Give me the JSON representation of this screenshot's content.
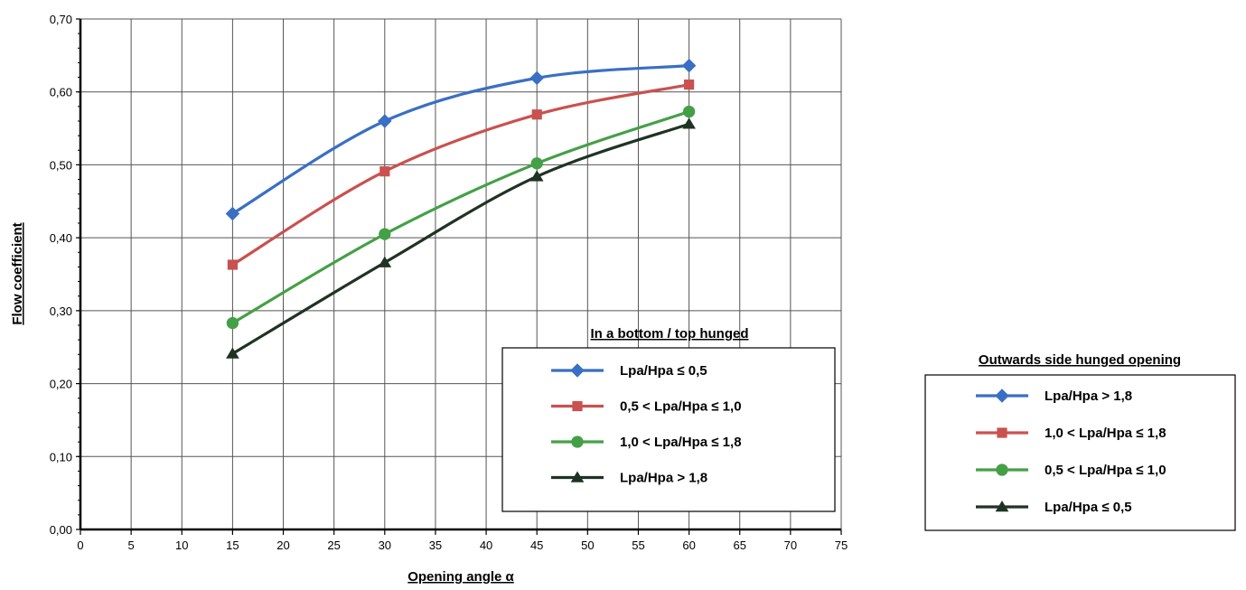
{
  "chart_data": {
    "type": "line",
    "xlabel": "Opening angle α",
    "ylabel": "Flow coefficient",
    "xlim": [
      0,
      75
    ],
    "ylim": [
      0,
      0.7
    ],
    "x_ticks": [
      "0",
      "5",
      "10",
      "15",
      "20",
      "25",
      "30",
      "35",
      "40",
      "45",
      "50",
      "55",
      "60",
      "65",
      "70",
      "75"
    ],
    "y_ticks": [
      "0,00",
      "0,10",
      "0,20",
      "0,30",
      "0,40",
      "0,50",
      "0,60",
      "0,70"
    ],
    "grid": true,
    "x": [
      15,
      30,
      45,
      60
    ],
    "series": [
      {
        "key": "s1",
        "color": "#3a6fc4",
        "marker": "diamond",
        "values": [
          0.433,
          0.56,
          0.619,
          0.636
        ]
      },
      {
        "key": "s2",
        "color": "#c9514f",
        "marker": "square",
        "values": [
          0.363,
          0.491,
          0.569,
          0.61
        ]
      },
      {
        "key": "s3",
        "color": "#44a046",
        "marker": "circle",
        "values": [
          0.283,
          0.405,
          0.502,
          0.573
        ]
      },
      {
        "key": "s4",
        "color": "#1f3323",
        "marker": "triangle",
        "values": [
          0.241,
          0.366,
          0.484,
          0.556
        ]
      }
    ],
    "legends": [
      {
        "title": "In a bottom / top hunged",
        "placement": "inside-bottom-right",
        "entries": [
          "Lpa/Hpa ≤ 0,5",
          "0,5 < Lpa/Hpa ≤ 1,0",
          "1,0 < Lpa/Hpa ≤ 1,8",
          "Lpa/Hpa > 1,8"
        ]
      },
      {
        "title": "Outwards side hunged opening",
        "placement": "outside-right",
        "entries": [
          "Lpa/Hpa > 1,8",
          "1,0 < Lpa/Hpa ≤ 1,8",
          "0,5 < Lpa/Hpa ≤ 1,0",
          "Lpa/Hpa ≤ 0,5"
        ]
      }
    ]
  }
}
